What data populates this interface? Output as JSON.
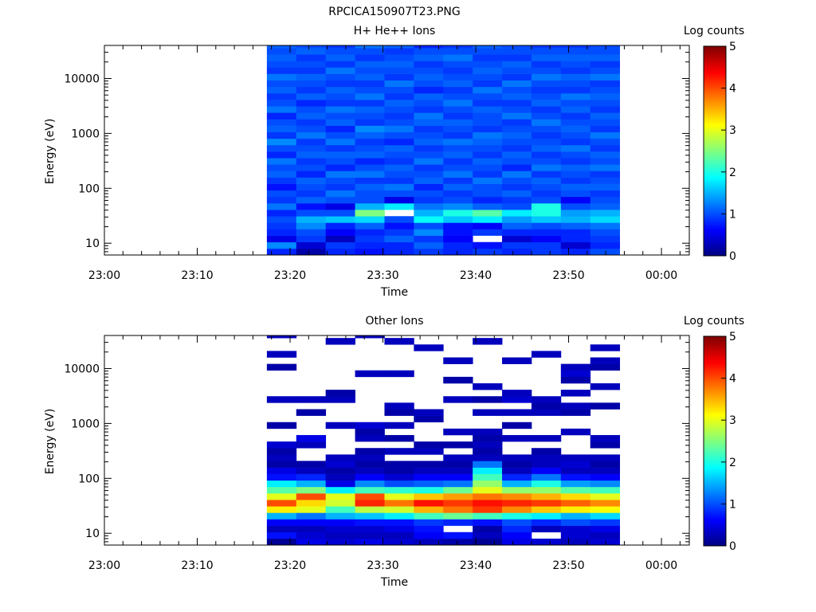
{
  "figure": {
    "title": "RPCICA150907T23.PNG"
  },
  "chart_data": [
    {
      "type": "heatmap",
      "title": "H+ He++ Ions",
      "xlabel": "Time",
      "ylabel": "Energy (eV)",
      "x_ticks": [
        "23:00",
        "23:10",
        "23:20",
        "23:30",
        "23:40",
        "23:50",
        "00:00"
      ],
      "xlim": [
        "23:00",
        "00:03"
      ],
      "y_scale": "log",
      "y_ticks": [
        "10",
        "100",
        "1000",
        "10000"
      ],
      "ylim": [
        6.1,
        40000
      ],
      "colorbar": {
        "label": "Log counts",
        "ticks": [
          "0",
          "1",
          "2",
          "3",
          "4",
          "5"
        ],
        "range": [
          0,
          5
        ],
        "colormap": "jet"
      },
      "time_bins": [
        "23:17:30",
        "23:20:40",
        "23:23:50",
        "23:27:00",
        "23:30:10",
        "23:33:20",
        "23:36:30",
        "23:39:40",
        "23:42:50",
        "23:46:00",
        "23:49:10",
        "23:52:20"
      ],
      "time_end": "23:55:30",
      "energy_bins": [
        6.1,
        8.0,
        10.5,
        13.8,
        18.1,
        23.7,
        31.1,
        40.8,
        53.5,
        70.2,
        92.1,
        121,
        158,
        208,
        272,
        357,
        469,
        615,
        806,
        1058,
        1388,
        1820,
        2388,
        3132,
        4108,
        5389,
        7069,
        9273,
        12163,
        15955,
        20930,
        27455,
        36014
      ],
      "energy_top": 40000,
      "values": [
        [
          0.8,
          1.3,
          0.5,
          0.8,
          0.9,
          1.0,
          0.8,
          1.2,
          0.9,
          1.0,
          0.7,
          0.9,
          1.1,
          1.0,
          1.2,
          0.8,
          1.0,
          1.3,
          0.9,
          1.1,
          1.0,
          0.8,
          1.2,
          1.0,
          0.9,
          1.1,
          1.0,
          1.2,
          0.9,
          1.0,
          1.1,
          1.0,
          1.1
        ],
        [
          0.2,
          0.4,
          0.9,
          1.0,
          1.3,
          1.5,
          1.0,
          0.7,
          1.1,
          0.9,
          1.0,
          1.1,
          0.8,
          1.0,
          0.9,
          1.1,
          1.0,
          0.9,
          1.2,
          1.0,
          0.9,
          1.1,
          1.0,
          0.8,
          1.1,
          0.9,
          1.0,
          1.1,
          0.9,
          1.0,
          0.9,
          1.1,
          1.0
        ],
        [
          0.8,
          0.9,
          0.3,
          0.6,
          0.8,
          1.6,
          1.0,
          0.5,
          1.0,
          1.2,
          0.9,
          1.0,
          1.2,
          0.8,
          1.0,
          1.1,
          0.9,
          1.2,
          1.0,
          0.8,
          1.1,
          1.0,
          1.2,
          0.9,
          1.0,
          1.1,
          0.9,
          1.0,
          1.2,
          0.9,
          1.1,
          1.0,
          0.9
        ],
        [
          0.7,
          0.8,
          0.9,
          0.8,
          1.1,
          1.7,
          2.5,
          1.5,
          1.0,
          1.0,
          1.1,
          0.9,
          1.2,
          1.0,
          0.8,
          1.1,
          1.0,
          0.9,
          1.1,
          1.3,
          0.9,
          1.0,
          1.1,
          0.9,
          1.2,
          1.0,
          0.9,
          1.1,
          1.0,
          1.1,
          0.9,
          1.0,
          1.2
        ],
        [
          0.8,
          0.8,
          1.1,
          0.9,
          0.7,
          1.0,
          null,
          1.8,
          0.5,
          1.0,
          1.2,
          0.9,
          1.0,
          1.1,
          0.9,
          1.0,
          1.1,
          0.8,
          1.0,
          1.2,
          1.0,
          0.9,
          1.0,
          1.1,
          0.9,
          1.0,
          1.2,
          0.9,
          1.0,
          1.1,
          1.0,
          0.9,
          1.1
        ],
        [
          0.9,
          1.1,
          0.9,
          1.3,
          1.0,
          1.9,
          1.5,
          1.2,
          0.9,
          1.0,
          0.8,
          1.1,
          1.0,
          0.9,
          1.2,
          1.0,
          0.9,
          1.1,
          1.0,
          0.9,
          1.1,
          1.2,
          0.9,
          1.0,
          1.1,
          0.8,
          1.0,
          1.1,
          1.0,
          0.9,
          1.1,
          1.0,
          0.8
        ],
        [
          0.8,
          0.8,
          0.6,
          0.7,
          0.7,
          1.6,
          2.0,
          1.3,
          1.0,
          0.9,
          1.1,
          0.9,
          1.2,
          1.0,
          0.9,
          1.1,
          1.0,
          1.2,
          0.9,
          1.0,
          1.1,
          0.9,
          1.0,
          1.2,
          1.0,
          0.9,
          1.1,
          1.0,
          0.9,
          1.0,
          1.2,
          1.0,
          0.9
        ],
        [
          0.9,
          0.7,
          null,
          0.9,
          0.6,
          1.8,
          2.3,
          1.1,
          0.8,
          1.0,
          1.0,
          1.2,
          0.9,
          1.0,
          1.1,
          0.9,
          1.0,
          1.1,
          1.2,
          0.9,
          1.0,
          1.0,
          1.1,
          0.9,
          1.0,
          1.2,
          0.9,
          1.0,
          1.1,
          1.0,
          0.9,
          1.0,
          1.1
        ],
        [
          0.8,
          0.9,
          0.4,
          0.8,
          1.1,
          1.4,
          1.8,
          1.0,
          0.9,
          1.1,
          0.9,
          1.0,
          1.2,
          0.8,
          1.0,
          1.1,
          0.9,
          1.0,
          1.1,
          1.0,
          0.9,
          1.2,
          1.0,
          0.9,
          1.1,
          1.0,
          1.2,
          0.9,
          1.0,
          1.1,
          0.9,
          1.0,
          1.0
        ],
        [
          0.9,
          0.9,
          0.6,
          0.8,
          1.0,
          1.6,
          2.0,
          2.0,
          1.0,
          0.9,
          1.0,
          1.1,
          0.9,
          1.2,
          1.0,
          0.9,
          1.1,
          1.0,
          0.9,
          1.0,
          1.2,
          1.0,
          0.9,
          1.1,
          1.0,
          0.9,
          1.0,
          1.2,
          1.0,
          0.9,
          1.1,
          1.0,
          0.9
        ],
        [
          0.8,
          0.4,
          0.8,
          0.8,
          1.1,
          1.5,
          1.4,
          1.0,
          0.6,
          1.0,
          1.1,
          0.9,
          1.0,
          1.1,
          0.9,
          1.0,
          1.2,
          0.9,
          1.0,
          1.1,
          1.0,
          0.9,
          1.1,
          1.0,
          1.2,
          0.9,
          1.0,
          1.1,
          0.9,
          1.0,
          1.1,
          1.0,
          0.9
        ],
        [
          1.0,
          0.8,
          0.9,
          1.0,
          1.2,
          1.7,
          1.5,
          1.1,
          1.0,
          0.9,
          1.1,
          1.0,
          0.9,
          1.2,
          1.0,
          1.1,
          0.9,
          1.0,
          1.2,
          0.9,
          1.0,
          1.1,
          0.9,
          1.0,
          1.1,
          1.0,
          0.9,
          1.2,
          1.0,
          0.9,
          1.1,
          1.0,
          1.0
        ]
      ]
    },
    {
      "type": "heatmap",
      "title": "Other Ions",
      "xlabel": "Time",
      "ylabel": "Energy (eV)",
      "x_ticks": [
        "23:00",
        "23:10",
        "23:20",
        "23:30",
        "23:40",
        "23:50",
        "00:00"
      ],
      "xlim": [
        "23:00",
        "00:03"
      ],
      "y_scale": "log",
      "y_ticks": [
        "10",
        "100",
        "1000",
        "10000"
      ],
      "ylim": [
        6.1,
        40000
      ],
      "colorbar": {
        "label": "Log counts",
        "ticks": [
          "0",
          "1",
          "2",
          "3",
          "4",
          "5"
        ],
        "range": [
          0,
          5
        ],
        "colormap": "jet"
      },
      "time_bins": [
        "23:17:30",
        "23:20:40",
        "23:23:50",
        "23:27:00",
        "23:30:10",
        "23:33:20",
        "23:36:30",
        "23:39:40",
        "23:42:50",
        "23:46:00",
        "23:49:10",
        "23:52:20"
      ],
      "time_end": "23:55:30",
      "energy_bins": [
        6.1,
        8.0,
        10.5,
        13.8,
        18.1,
        23.7,
        31.1,
        40.8,
        53.5,
        70.2,
        92.1,
        121,
        158,
        208,
        272,
        357,
        469,
        615,
        806,
        1058,
        1388,
        1820,
        2388,
        3132,
        4108,
        5389,
        7069,
        9273,
        12163,
        15955,
        20930,
        27455,
        36014
      ],
      "energy_top": 40000,
      "values": [
        [
          0.1,
          0.7,
          0.3,
          0.6,
          1.5,
          3.2,
          4.0,
          3.0,
          2.3,
          1.8,
          0.7,
          0.5,
          0.2,
          0.3,
          0.2,
          0.4,
          null,
          null,
          0.2,
          null,
          null,
          null,
          0.3,
          null,
          null,
          null,
          null,
          0.2,
          null,
          0.3,
          null,
          null,
          0.3
        ],
        [
          0.5,
          0.4,
          0.3,
          0.6,
          1.2,
          3.0,
          3.3,
          4.0,
          2.5,
          1.5,
          0.8,
          0.3,
          0.2,
          null,
          null,
          0.3,
          0.5,
          null,
          null,
          null,
          0.2,
          null,
          0.3,
          null,
          null,
          null,
          null,
          null,
          null,
          null,
          null,
          null,
          null
        ],
        [
          0.4,
          0.3,
          0.4,
          0.6,
          1.5,
          2.2,
          2.9,
          3.0,
          1.8,
          0.5,
          0.3,
          0.2,
          0.4,
          0.3,
          null,
          null,
          null,
          null,
          0.3,
          null,
          null,
          null,
          0.3,
          0.2,
          null,
          null,
          null,
          null,
          null,
          null,
          null,
          0.3,
          null
        ],
        [
          0.5,
          0.3,
          0.4,
          0.7,
          1.6,
          2.8,
          4.2,
          4.0,
          2.2,
          1.3,
          0.6,
          0.3,
          0.2,
          0.3,
          0.2,
          null,
          0.3,
          0.2,
          0.4,
          null,
          null,
          null,
          null,
          null,
          null,
          null,
          0.3,
          null,
          null,
          null,
          null,
          null,
          0.3
        ],
        [
          0.4,
          0.3,
          0.5,
          0.7,
          1.8,
          2.9,
          3.8,
          3.0,
          2.1,
          1.0,
          0.4,
          0.2,
          0.2,
          null,
          0.3,
          null,
          0.2,
          null,
          0.3,
          null,
          0.2,
          0.3,
          null,
          null,
          null,
          null,
          0.3,
          null,
          null,
          null,
          null,
          0.3,
          null
        ],
        [
          0.3,
          0.6,
          0.7,
          0.9,
          2.2,
          3.5,
          4.3,
          3.4,
          2.0,
          1.1,
          0.6,
          0.3,
          0.2,
          null,
          0.3,
          0.2,
          null,
          null,
          null,
          0.2,
          0.3,
          null,
          null,
          null,
          null,
          null,
          null,
          null,
          null,
          null,
          0.3,
          null,
          null
        ],
        [
          0.2,
          0.7,
          null,
          0.8,
          2.4,
          3.8,
          4.1,
          3.6,
          2.4,
          1.2,
          0.6,
          0.3,
          0.2,
          0.3,
          null,
          0.2,
          null,
          0.3,
          null,
          null,
          null,
          null,
          0.3,
          null,
          null,
          0.2,
          null,
          null,
          0.3,
          null,
          null,
          null,
          null
        ],
        [
          0.1,
          0.3,
          0.2,
          0.7,
          2.2,
          4.1,
          4.3,
          3.8,
          3.0,
          2.6,
          2.2,
          1.8,
          1.2,
          0.3,
          0.2,
          0.3,
          0.2,
          0.3,
          null,
          null,
          0.3,
          null,
          0.2,
          null,
          0.3,
          null,
          null,
          null,
          null,
          null,
          null,
          0.3,
          null
        ],
        [
          0.5,
          0.6,
          0.8,
          1.0,
          2.0,
          3.7,
          4.2,
          3.7,
          2.6,
          1.5,
          0.8,
          0.3,
          0.2,
          0.3,
          null,
          null,
          0.3,
          null,
          0.2,
          null,
          0.3,
          null,
          0.4,
          0.3,
          null,
          null,
          null,
          null,
          0.3,
          null,
          null,
          null,
          null
        ],
        [
          0.4,
          null,
          0.3,
          0.8,
          1.8,
          3.4,
          4.1,
          3.5,
          2.6,
          2.0,
          1.2,
          0.6,
          0.3,
          0.3,
          0.2,
          null,
          0.3,
          null,
          null,
          null,
          0.3,
          0.2,
          0.3,
          null,
          null,
          null,
          null,
          null,
          null,
          0.3,
          null,
          null,
          null
        ],
        [
          0.3,
          0.4,
          0.4,
          1.0,
          1.5,
          3.2,
          3.9,
          3.3,
          2.3,
          1.4,
          0.7,
          0.3,
          0.4,
          0.3,
          null,
          null,
          null,
          0.3,
          null,
          null,
          0.2,
          0.3,
          null,
          0.3,
          null,
          0.2,
          0.4,
          0.3,
          null,
          null,
          null,
          null,
          null
        ],
        [
          0.4,
          0.3,
          0.5,
          0.9,
          1.7,
          3.1,
          3.7,
          3.0,
          2.2,
          1.3,
          0.6,
          0.3,
          0.2,
          0.3,
          null,
          0.2,
          0.3,
          null,
          null,
          null,
          null,
          0.2,
          null,
          null,
          0.3,
          null,
          null,
          0.2,
          0.3,
          null,
          0.3,
          null,
          null
        ]
      ]
    }
  ]
}
